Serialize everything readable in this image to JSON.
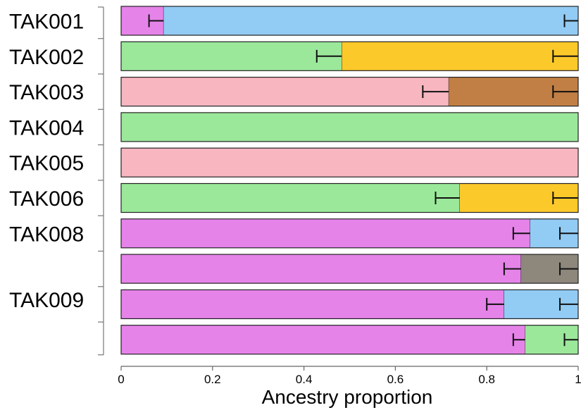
{
  "chart_data": {
    "type": "bar",
    "orientation": "horizontal",
    "stacked": true,
    "xlabel": "Ancestry proportion",
    "xlim": [
      0,
      1
    ],
    "xticks": [
      0,
      0.2,
      0.4,
      0.6,
      0.8,
      1
    ],
    "xtick_labels": [
      "0",
      "0.2",
      "0.4",
      "0.6",
      "0.8",
      "1"
    ],
    "groups": [
      {
        "label": "TAK001",
        "rows": 1
      },
      {
        "label": "TAK002",
        "rows": 1
      },
      {
        "label": "TAK003",
        "rows": 1
      },
      {
        "label": "TAK004",
        "rows": 1
      },
      {
        "label": "TAK005",
        "rows": 1
      },
      {
        "label": "TAK006",
        "rows": 1
      },
      {
        "label": "TAK008",
        "rows": 1
      },
      {
        "label": "TAK009",
        "rows": 3
      }
    ],
    "bars": [
      {
        "segments": [
          {
            "value": 0.093,
            "color": "#e583e9"
          },
          {
            "value": 0.907,
            "color": "#92cbf4"
          }
        ],
        "error_bars": [
          {
            "center": 0.093,
            "low": 0.061
          },
          {
            "center": 1.0,
            "low": 0.97
          }
        ]
      },
      {
        "segments": [
          {
            "value": 0.483,
            "color": "#9be89b"
          },
          {
            "value": 0.517,
            "color": "#fcc92b"
          }
        ],
        "error_bars": [
          {
            "center": 0.483,
            "low": 0.428
          },
          {
            "center": 1.0,
            "low": 0.945
          }
        ]
      },
      {
        "segments": [
          {
            "value": 0.717,
            "color": "#f8b6c1"
          },
          {
            "value": 0.283,
            "color": "#c17f45"
          }
        ],
        "error_bars": [
          {
            "center": 0.717,
            "low": 0.66
          },
          {
            "center": 1.0,
            "low": 0.945
          }
        ]
      },
      {
        "segments": [
          {
            "value": 1.0,
            "color": "#9be89b"
          }
        ],
        "error_bars": []
      },
      {
        "segments": [
          {
            "value": 1.0,
            "color": "#f8b6c1"
          }
        ],
        "error_bars": []
      },
      {
        "segments": [
          {
            "value": 0.741,
            "color": "#9be89b"
          },
          {
            "value": 0.259,
            "color": "#fcc92b"
          }
        ],
        "error_bars": [
          {
            "center": 0.741,
            "low": 0.688
          },
          {
            "center": 1.0,
            "low": 0.945
          }
        ]
      },
      {
        "segments": [
          {
            "value": 0.895,
            "color": "#e583e9"
          },
          {
            "value": 0.105,
            "color": "#92cbf4"
          }
        ],
        "error_bars": [
          {
            "center": 0.895,
            "low": 0.858
          },
          {
            "center": 1.0,
            "low": 0.96
          }
        ]
      },
      {
        "segments": [
          {
            "value": 0.875,
            "color": "#e583e9"
          },
          {
            "value": 0.125,
            "color": "#8d877c"
          }
        ],
        "error_bars": [
          {
            "center": 0.875,
            "low": 0.838
          },
          {
            "center": 1.0,
            "low": 0.96
          }
        ]
      },
      {
        "segments": [
          {
            "value": 0.838,
            "color": "#e583e9"
          },
          {
            "value": 0.162,
            "color": "#92cbf4"
          }
        ],
        "error_bars": [
          {
            "center": 0.838,
            "low": 0.8
          },
          {
            "center": 1.0,
            "low": 0.96
          }
        ]
      },
      {
        "segments": [
          {
            "value": 0.884,
            "color": "#e583e9"
          },
          {
            "value": 0.116,
            "color": "#9be89b"
          }
        ],
        "error_bars": [
          {
            "center": 0.884,
            "low": 0.858
          },
          {
            "center": 1.0,
            "low": 0.97
          }
        ]
      }
    ]
  }
}
